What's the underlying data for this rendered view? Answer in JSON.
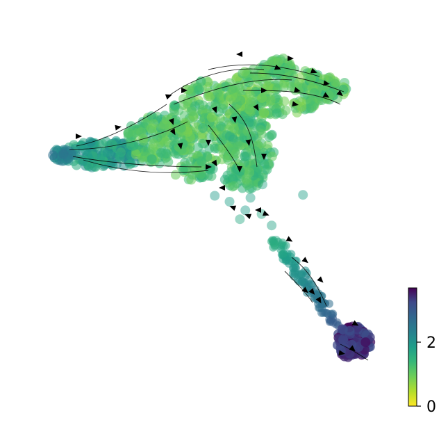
{
  "chart_data": {
    "type": "scatter",
    "subtype": "velocity-stream-embedding",
    "title": "",
    "xlabel": "",
    "ylabel": "",
    "axes_visible": false,
    "grid": false,
    "colormap": "viridis_r",
    "colorbar": {
      "min": 0,
      "max": 3.7,
      "ticks": [
        0,
        2
      ],
      "tick_labels": [
        "0",
        "2"
      ],
      "placement": "bottom-right"
    },
    "colors": {
      "low": "#fde725",
      "mid": "#21918c",
      "high": "#440154",
      "stream": "#000000"
    }
  }
}
